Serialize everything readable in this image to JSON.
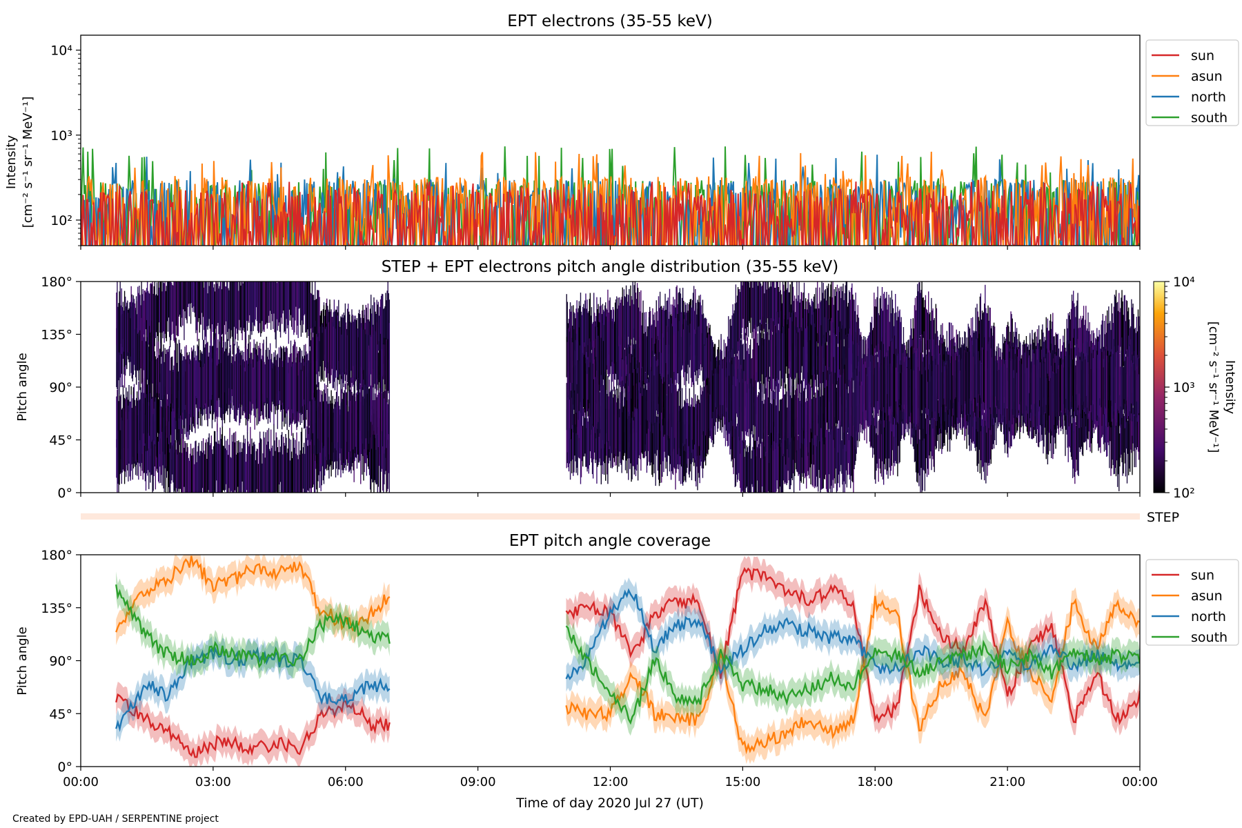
{
  "figure": {
    "credit": "Created by EPD-UAH / SERPENTINE project",
    "xlabel": "Time of day 2020 Jul 27 (UT)",
    "xticks": [
      "00:00",
      "03:00",
      "06:00",
      "09:00",
      "12:00",
      "15:00",
      "18:00",
      "21:00",
      "00:00"
    ]
  },
  "colors": {
    "sun": "#d62728",
    "asun": "#ff7f0e",
    "north": "#1f77b4",
    "south": "#2ca02c"
  },
  "chart_data": [
    {
      "type": "line",
      "title": "EPT electrons (35-55 keV)",
      "ylabel": "Intensity",
      "ylabel_unit": "[cm⁻² s⁻¹ sr⁻¹ MeV⁻¹]",
      "yscale": "log",
      "ylim": [
        50,
        15000
      ],
      "yticks": [
        "10²",
        "10³",
        "10⁴"
      ],
      "xlim_hours": [
        0,
        24
      ],
      "legend": {
        "placement": "outside upper right",
        "entries": [
          "sun",
          "asun",
          "north",
          "south"
        ]
      },
      "series": [
        {
          "name": "sun",
          "typical_range": [
            50,
            230
          ],
          "max": 300
        },
        {
          "name": "asun",
          "typical_range": [
            50,
            330
          ],
          "max": 650
        },
        {
          "name": "north",
          "typical_range": [
            50,
            300
          ],
          "max": 600
        },
        {
          "name": "south",
          "typical_range": [
            50,
            300
          ],
          "max": 750
        }
      ]
    },
    {
      "type": "heatmap",
      "title": "STEP + EPT electrons pitch angle distribution (35-55 keV)",
      "ylabel": "Pitch angle",
      "ylim": [
        0,
        180
      ],
      "yticks": [
        "0°",
        "45°",
        "90°",
        "135°",
        "180°"
      ],
      "xlim_hours": [
        0,
        24
      ],
      "data_intervals_hours": [
        [
          0.8,
          7.0
        ],
        [
          11.0,
          24.0
        ]
      ],
      "colorbar": {
        "label": "Intensity",
        "unit": "[cm⁻² s⁻¹ sr⁻¹ MeV⁻¹]",
        "scale": "log",
        "range": [
          100,
          10000
        ],
        "ticks": [
          "10²",
          "10³",
          "10⁴"
        ],
        "colormap": "inferno"
      }
    },
    {
      "type": "line",
      "title": "STEP",
      "note": "thin STEP coverage band below the pitch-angle panel"
    },
    {
      "type": "line",
      "title": "EPT pitch angle coverage",
      "ylabel": "Pitch angle",
      "ylim": [
        0,
        180
      ],
      "yticks": [
        "0°",
        "45°",
        "90°",
        "135°",
        "180°"
      ],
      "xlim_hours": [
        0,
        24
      ],
      "shaded_band": true,
      "legend": {
        "placement": "outside upper right",
        "entries": [
          "sun",
          "asun",
          "north",
          "south"
        ]
      },
      "x": [
        0.8,
        1.5,
        2.0,
        2.5,
        3.0,
        3.5,
        4.0,
        4.5,
        5.0,
        5.4,
        5.8,
        6.2,
        6.6,
        7.0,
        11.0,
        11.5,
        12.0,
        12.5,
        13.0,
        13.5,
        14.0,
        14.5,
        15.0,
        15.5,
        16.0,
        16.5,
        17.0,
        17.5,
        18.0,
        18.5,
        19.0,
        19.5,
        20.0,
        20.5,
        21.0,
        21.5,
        22.0,
        22.5,
        23.0,
        23.5,
        24.0
      ],
      "series": [
        {
          "name": "sun",
          "values": [
            60,
            40,
            30,
            10,
            20,
            20,
            15,
            20,
            15,
            40,
            50,
            50,
            35,
            35,
            130,
            135,
            130,
            95,
            130,
            140,
            140,
            80,
            165,
            160,
            150,
            140,
            150,
            140,
            40,
            50,
            150,
            110,
            100,
            140,
            60,
            100,
            120,
            40,
            80,
            40,
            60
          ]
        },
        {
          "name": "asun",
          "values": [
            120,
            150,
            160,
            175,
            155,
            160,
            170,
            165,
            170,
            135,
            125,
            120,
            130,
            145,
            50,
            45,
            45,
            80,
            45,
            40,
            40,
            95,
            15,
            20,
            30,
            40,
            30,
            40,
            140,
            130,
            30,
            70,
            80,
            40,
            120,
            80,
            60,
            140,
            100,
            140,
            120
          ]
        },
        {
          "name": "north",
          "values": [
            30,
            70,
            60,
            90,
            95,
            90,
            95,
            90,
            90,
            60,
            55,
            60,
            70,
            65,
            70,
            95,
            130,
            150,
            100,
            120,
            125,
            85,
            100,
            115,
            120,
            115,
            110,
            110,
            85,
            85,
            100,
            90,
            90,
            80,
            95,
            85,
            100,
            85,
            95,
            85,
            90
          ]
        },
        {
          "name": "south",
          "values": [
            150,
            110,
            95,
            90,
            100,
            95,
            90,
            95,
            90,
            120,
            125,
            120,
            110,
            110,
            115,
            90,
            60,
            40,
            90,
            60,
            55,
            95,
            70,
            65,
            60,
            65,
            75,
            70,
            95,
            95,
            80,
            90,
            95,
            100,
            85,
            95,
            80,
            100,
            90,
            95,
            90
          ]
        }
      ]
    }
  ]
}
